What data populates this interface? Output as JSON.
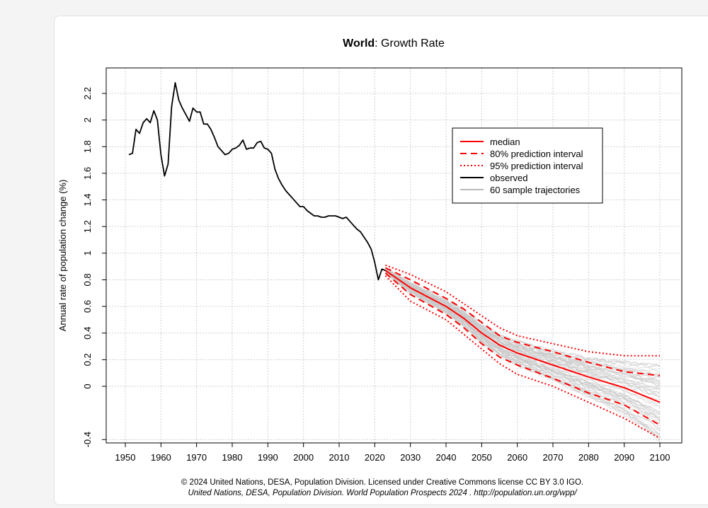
{
  "chart_data": {
    "type": "line",
    "title_bold": "World",
    "title_rest": ": Growth Rate",
    "xlabel": "",
    "ylabel": "Annual rate of population change (%)",
    "xlim": [
      1950,
      2100
    ],
    "ylim": [
      -0.4,
      2.3
    ],
    "x_ticks": [
      1950,
      1960,
      1970,
      1980,
      1990,
      2000,
      2010,
      2020,
      2030,
      2040,
      2050,
      2060,
      2070,
      2080,
      2090,
      2100
    ],
    "y_ticks": [
      -0.4,
      0,
      0.2,
      0.4,
      0.6,
      0.8,
      1,
      1.2,
      1.4,
      1.6,
      1.8,
      2,
      2.2
    ],
    "y_tick_labels": [
      "-0.4",
      "0",
      "0.2",
      "0.4",
      "0.6",
      "0.8",
      "1",
      "1.2",
      "1.4",
      "1.6",
      "1.8",
      "2",
      "2.2"
    ],
    "grid": true,
    "legend_position": "top-right",
    "legend": [
      {
        "label": "median",
        "color": "#ff0000",
        "style": "solid"
      },
      {
        "label": "80% prediction interval",
        "color": "#ff0000",
        "style": "dashed"
      },
      {
        "label": "95% prediction interval",
        "color": "#ff0000",
        "style": "dotted"
      },
      {
        "label": "observed",
        "color": "#000000",
        "style": "solid"
      },
      {
        "label": "60 sample trajectories",
        "color": "#bbbbbb",
        "style": "solid"
      }
    ],
    "series": [
      {
        "name": "observed",
        "color": "#000000",
        "x": [
          1951,
          1952,
          1953,
          1954,
          1955,
          1956,
          1957,
          1958,
          1959,
          1960,
          1961,
          1962,
          1963,
          1964,
          1965,
          1966,
          1967,
          1968,
          1969,
          1970,
          1971,
          1972,
          1973,
          1974,
          1975,
          1976,
          1977,
          1978,
          1979,
          1980,
          1981,
          1982,
          1983,
          1984,
          1985,
          1986,
          1987,
          1988,
          1989,
          1990,
          1991,
          1992,
          1993,
          1994,
          1995,
          1996,
          1997,
          1998,
          1999,
          2000,
          2001,
          2002,
          2003,
          2004,
          2005,
          2006,
          2007,
          2008,
          2009,
          2010,
          2011,
          2012,
          2013,
          2014,
          2015,
          2016,
          2017,
          2018,
          2019,
          2020,
          2021,
          2022,
          2023
        ],
        "y": [
          1.74,
          1.75,
          1.93,
          1.9,
          1.98,
          2.01,
          1.98,
          2.07,
          2.0,
          1.74,
          1.58,
          1.67,
          2.1,
          2.28,
          2.15,
          2.09,
          2.04,
          1.99,
          2.09,
          2.06,
          2.06,
          1.97,
          1.97,
          1.93,
          1.87,
          1.8,
          1.77,
          1.74,
          1.75,
          1.78,
          1.79,
          1.81,
          1.85,
          1.78,
          1.79,
          1.79,
          1.83,
          1.84,
          1.79,
          1.78,
          1.75,
          1.63,
          1.56,
          1.51,
          1.47,
          1.44,
          1.41,
          1.38,
          1.35,
          1.35,
          1.32,
          1.3,
          1.28,
          1.28,
          1.27,
          1.27,
          1.28,
          1.28,
          1.28,
          1.27,
          1.26,
          1.27,
          1.24,
          1.21,
          1.18,
          1.16,
          1.12,
          1.08,
          1.03,
          0.93,
          0.8,
          0.88,
          0.87
        ]
      },
      {
        "name": "median",
        "color": "#ff0000",
        "x": [
          2023,
          2030,
          2040,
          2045,
          2050,
          2055,
          2060,
          2070,
          2080,
          2090,
          2100
        ],
        "y": [
          0.87,
          0.74,
          0.6,
          0.51,
          0.4,
          0.31,
          0.25,
          0.16,
          0.07,
          -0.01,
          -0.12
        ]
      },
      {
        "name": "80% prediction interval (upper)",
        "color": "#ff0000",
        "x": [
          2023,
          2030,
          2040,
          2045,
          2050,
          2055,
          2060,
          2070,
          2080,
          2090,
          2100
        ],
        "y": [
          0.89,
          0.8,
          0.66,
          0.58,
          0.48,
          0.38,
          0.33,
          0.26,
          0.18,
          0.11,
          0.08
        ]
      },
      {
        "name": "80% prediction interval (lower)",
        "color": "#ff0000",
        "x": [
          2023,
          2030,
          2040,
          2045,
          2050,
          2055,
          2060,
          2070,
          2080,
          2090,
          2100
        ],
        "y": [
          0.85,
          0.69,
          0.54,
          0.44,
          0.32,
          0.22,
          0.16,
          0.06,
          -0.05,
          -0.14,
          -0.29
        ]
      },
      {
        "name": "95% prediction interval (upper)",
        "color": "#ff0000",
        "x": [
          2023,
          2030,
          2040,
          2045,
          2050,
          2055,
          2060,
          2070,
          2080,
          2090,
          2100
        ],
        "y": [
          0.91,
          0.84,
          0.71,
          0.62,
          0.53,
          0.44,
          0.38,
          0.32,
          0.26,
          0.23,
          0.23
        ]
      },
      {
        "name": "95% prediction interval (lower)",
        "color": "#ff0000",
        "x": [
          2023,
          2030,
          2040,
          2045,
          2050,
          2055,
          2060,
          2070,
          2080,
          2090,
          2100
        ],
        "y": [
          0.83,
          0.64,
          0.5,
          0.39,
          0.28,
          0.17,
          0.09,
          0.0,
          -0.12,
          -0.24,
          -0.39
        ]
      }
    ],
    "sample_trajectories_count": 60,
    "sample_trajectory_color": "#c8c8c8"
  },
  "credit_line1": "© 2024 United Nations, DESA, Population Division. Licensed under Creative Commons license CC BY 3.0 IGO.",
  "credit_line2": "United Nations, DESA, Population Division. World Population Prospects 2024 . http://population.un.org/wpp/"
}
